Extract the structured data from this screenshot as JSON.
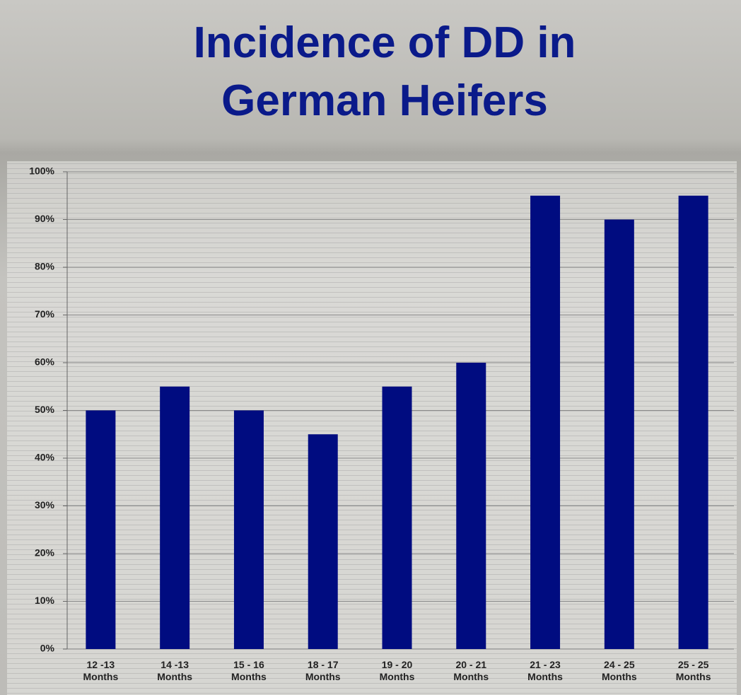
{
  "chart_data": {
    "type": "bar",
    "title": "Incidence of DD in German Heifers",
    "categories": [
      "12 -13 Months",
      "14 -13 Months",
      "15 - 16 Months",
      "18 - 17 Months",
      "19 - 20 Months",
      "20 - 21 Months",
      "21 - 23 Months",
      "24 - 25 Months",
      "25 - 25 Months"
    ],
    "values": [
      50,
      55,
      50,
      45,
      55,
      60,
      95,
      90,
      95
    ],
    "color": "#000c80",
    "ylim": [
      0,
      100
    ],
    "yticks": [
      {
        "value": 0,
        "label": "0%"
      },
      {
        "value": 10,
        "label": "10%"
      },
      {
        "value": 20,
        "label": "20%"
      },
      {
        "value": 30,
        "label": "30%"
      },
      {
        "value": 40,
        "label": "40%"
      },
      {
        "value": 50,
        "label": "50%"
      },
      {
        "value": 60,
        "label": "60%"
      },
      {
        "value": 70,
        "label": "70%"
      },
      {
        "value": 80,
        "label": "80%"
      },
      {
        "value": 90,
        "label": "90%"
      },
      {
        "value": 100,
        "label": "100%"
      }
    ],
    "grid": true
  }
}
